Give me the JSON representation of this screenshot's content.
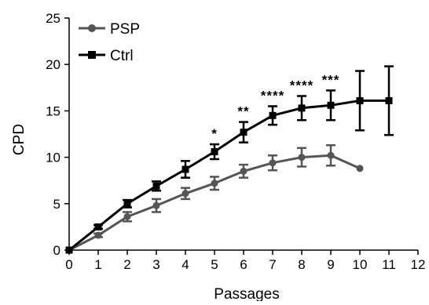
{
  "chart_data": {
    "type": "line",
    "xlabel": "Passages",
    "ylabel": "CPD",
    "xlim": [
      0,
      12
    ],
    "ylim": [
      0,
      25
    ],
    "x_ticks": [
      "0",
      "1",
      "2",
      "3",
      "4",
      "5",
      "6",
      "7",
      "8",
      "9",
      "10",
      "11",
      "12"
    ],
    "y_ticks": [
      "0",
      "5",
      "10",
      "15",
      "20",
      "25"
    ],
    "grid": false,
    "legend_position": "top-left",
    "series": [
      {
        "name": "PSP",
        "marker": "circle",
        "color": "#555555",
        "x": [
          0,
          1,
          2,
          3,
          4,
          5,
          6,
          7,
          8,
          9,
          10
        ],
        "y": [
          0,
          1.6,
          3.6,
          4.8,
          6.1,
          7.2,
          8.5,
          9.4,
          10.0,
          10.2,
          8.8
        ],
        "error": [
          0,
          0.2,
          0.5,
          0.7,
          0.6,
          0.7,
          0.7,
          0.8,
          1.0,
          1.1,
          0
        ]
      },
      {
        "name": "Ctrl",
        "marker": "square",
        "color": "#000000",
        "x": [
          0,
          1,
          2,
          3,
          4,
          5,
          6,
          7,
          8,
          9,
          10,
          11
        ],
        "y": [
          0,
          2.5,
          5.0,
          6.9,
          8.7,
          10.6,
          12.7,
          14.5,
          15.3,
          15.6,
          16.1,
          16.1
        ],
        "error": [
          0,
          0.2,
          0.4,
          0.5,
          0.9,
          0.8,
          1.1,
          1.0,
          1.3,
          1.6,
          3.2,
          3.7
        ]
      }
    ],
    "annotations": [
      {
        "x": 5,
        "text": "*"
      },
      {
        "x": 6,
        "text": "**"
      },
      {
        "x": 7,
        "text": "****"
      },
      {
        "x": 8,
        "text": "****"
      },
      {
        "x": 9,
        "text": "***"
      }
    ]
  }
}
